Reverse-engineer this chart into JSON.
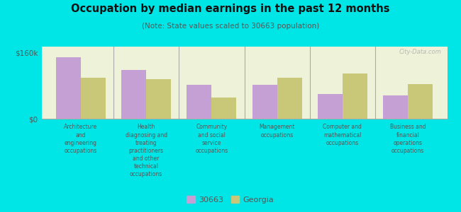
{
  "title": "Occupation by median earnings in the past 12 months",
  "subtitle": "(Note: State values scaled to 30663 population)",
  "background_outer": "#00e5e5",
  "background_inner": "#edf2d8",
  "bar_color_30663": "#c4a0d4",
  "bar_color_georgia": "#c8c878",
  "categories": [
    "Architecture\nand\nengineering\noccupations",
    "Health\ndiagnosing and\ntreating\npractitioners\nand other\ntechnical\noccupations",
    "Community\nand social\nservice\noccupations",
    "Management\noccupations",
    "Computer and\nmathematical\noccupations",
    "Business and\nfinancial\noperations\noccupations"
  ],
  "values_30663": [
    150000,
    118000,
    82000,
    82000,
    60000,
    56000
  ],
  "values_georgia": [
    100000,
    96000,
    52000,
    100000,
    110000,
    84000
  ],
  "ylim": [
    0,
    175000
  ],
  "ytick_vals": [
    0,
    160000
  ],
  "ytick_labels": [
    "$0",
    "$160k"
  ],
  "legend_30663": "30663",
  "legend_georgia": "Georgia",
  "watermark": "City-Data.com",
  "text_color": "#555555",
  "title_color": "#111111",
  "spine_color": "#aaaaaa"
}
